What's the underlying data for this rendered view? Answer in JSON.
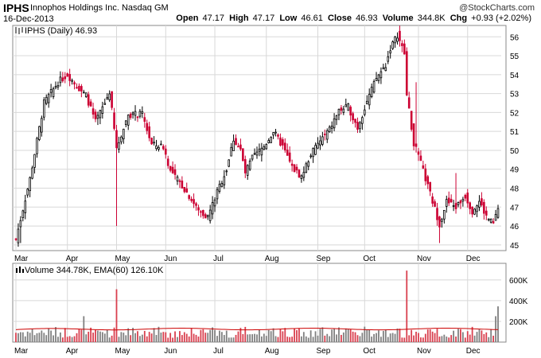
{
  "header": {
    "symbol": "IPHS",
    "company": "Innophos Holdings Inc.",
    "exchange": "Nasdaq GM",
    "date": "16-Dec-2013",
    "copyright": "@StockCharts.com",
    "open_label": "Open",
    "open": "47.17",
    "high_label": "High",
    "high": "47.17",
    "low_label": "Low",
    "low": "46.61",
    "close_label": "Close",
    "close": "46.93",
    "volume_label": "Volume",
    "volume": "344.8K",
    "chg_label": "Chg",
    "chg": "+0.93 (+2.02%)"
  },
  "colors": {
    "up": "#000000",
    "down": "#cc0033",
    "vol_up": "#808080",
    "vol_down": "#d9404f",
    "ema": "#cc0000"
  },
  "chart_data": [
    {
      "type": "candlestick",
      "legend": "IPHS (Daily) 46.93",
      "ylim": [
        44.7,
        56.6
      ],
      "yticks": [
        45,
        46,
        47,
        48,
        49,
        50,
        51,
        52,
        53,
        54,
        55,
        56
      ],
      "months": [
        "Mar",
        "Apr",
        "May",
        "Jun",
        "Jul",
        "Aug",
        "Sep",
        "Oct",
        "Nov",
        "Dec"
      ],
      "anchors": [
        {
          "d": 0,
          "c": 45.3
        },
        {
          "d": 6,
          "c": 48.5
        },
        {
          "d": 12,
          "c": 52.5
        },
        {
          "d": 18,
          "c": 53.6
        },
        {
          "d": 22,
          "c": 54.0
        },
        {
          "d": 26,
          "c": 53.4
        },
        {
          "d": 30,
          "c": 52.9
        },
        {
          "d": 34,
          "c": 51.5
        },
        {
          "d": 38,
          "c": 52.5
        },
        {
          "d": 40,
          "c": 53.1
        },
        {
          "d": 43,
          "c": 50.1
        },
        {
          "d": 48,
          "c": 51.9
        },
        {
          "d": 54,
          "c": 51.9
        },
        {
          "d": 58,
          "c": 50.3
        },
        {
          "d": 63,
          "c": 50.2
        },
        {
          "d": 66,
          "c": 48.9
        },
        {
          "d": 70,
          "c": 48.3
        },
        {
          "d": 74,
          "c": 47.6
        },
        {
          "d": 78,
          "c": 46.8
        },
        {
          "d": 82,
          "c": 46.5
        },
        {
          "d": 86,
          "c": 47.8
        },
        {
          "d": 90,
          "c": 49.0
        },
        {
          "d": 93,
          "c": 50.6
        },
        {
          "d": 96,
          "c": 50.0
        },
        {
          "d": 98,
          "c": 48.8
        },
        {
          "d": 101,
          "c": 49.6
        },
        {
          "d": 106,
          "c": 50.2
        },
        {
          "d": 110,
          "c": 51.0
        },
        {
          "d": 114,
          "c": 50.2
        },
        {
          "d": 118,
          "c": 49.1
        },
        {
          "d": 122,
          "c": 48.6
        },
        {
          "d": 126,
          "c": 49.8
        },
        {
          "d": 130,
          "c": 50.5
        },
        {
          "d": 134,
          "c": 51.1
        },
        {
          "d": 138,
          "c": 52.1
        },
        {
          "d": 142,
          "c": 52.3
        },
        {
          "d": 146,
          "c": 51.2
        },
        {
          "d": 150,
          "c": 52.6
        },
        {
          "d": 154,
          "c": 53.8
        },
        {
          "d": 158,
          "c": 54.5
        },
        {
          "d": 160,
          "c": 55.4
        },
        {
          "d": 163,
          "c": 56.1
        },
        {
          "d": 166,
          "c": 55.1
        },
        {
          "d": 167,
          "c": 52.9
        },
        {
          "d": 170,
          "c": 50.4
        },
        {
          "d": 173,
          "c": 49.3
        },
        {
          "d": 176,
          "c": 48.1
        },
        {
          "d": 179,
          "c": 46.9
        },
        {
          "d": 181,
          "c": 46.1
        },
        {
          "d": 184,
          "c": 47.3
        },
        {
          "d": 188,
          "c": 47.0
        },
        {
          "d": 192,
          "c": 47.6
        },
        {
          "d": 195,
          "c": 46.8
        },
        {
          "d": 198,
          "c": 47.3
        },
        {
          "d": 201,
          "c": 46.5
        },
        {
          "d": 204,
          "c": 46.1
        },
        {
          "d": 206,
          "c": 46.93
        }
      ],
      "spikes": [
        {
          "d": 43,
          "low": 46.0
        },
        {
          "d": 2,
          "low": 45.1
        },
        {
          "d": 171,
          "high": 53.6
        },
        {
          "d": 181,
          "low": 45.1
        },
        {
          "d": 188,
          "high": 48.8
        }
      ],
      "gridlines": true
    },
    {
      "type": "bar",
      "legend": "Volume 344.78K, EMA(60) 126.10K",
      "ylim": [
        0,
        760
      ],
      "ytick_labels": [
        "200K",
        "400K",
        "600K"
      ],
      "yticks": [
        200,
        400,
        600
      ],
      "months": [
        "Mar",
        "Apr",
        "May",
        "Jun",
        "Jul",
        "Aug",
        "Sep",
        "Oct",
        "Nov",
        "Dec"
      ],
      "base_volume_k": 120,
      "big_bars": [
        {
          "d": 43,
          "v": 510
        },
        {
          "d": 167,
          "v": 690
        },
        {
          "d": 29,
          "v": 250
        },
        {
          "d": 206,
          "v": 344.78
        },
        {
          "d": 205,
          "v": 250
        }
      ],
      "ema_k": 126.1,
      "gridlines": true
    }
  ]
}
